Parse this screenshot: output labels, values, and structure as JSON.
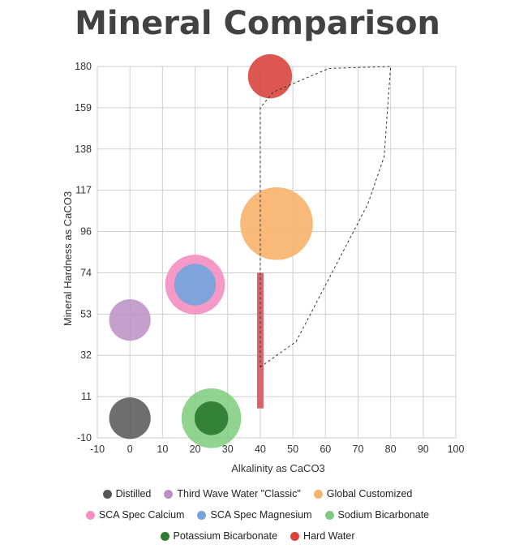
{
  "chart_data": {
    "type": "scatter",
    "title": "Mineral Comparison",
    "xlabel": "Alkalinity as CaCO3",
    "ylabel": "Mineral Hardness as CaCO3",
    "xlim": [
      -10,
      100
    ],
    "ylim": [
      -10,
      180
    ],
    "x_ticks": [
      "-10",
      "0",
      "10",
      "20",
      "30",
      "40",
      "50",
      "60",
      "70",
      "80",
      "90",
      "100"
    ],
    "y_ticks": [
      "-10",
      "11",
      "32",
      "53",
      "74",
      "96",
      "117",
      "138",
      "159",
      "180"
    ],
    "y_tick_values": [
      -10,
      11,
      32,
      53,
      74,
      96,
      117,
      138,
      159,
      180
    ],
    "grid": true,
    "legend_position": "bottom",
    "bubble_series": [
      {
        "name": "Sodium Bicarbonate",
        "color": "#7dcc7d",
        "opacity": 0.85,
        "x": 25,
        "y": 0,
        "r": 23
      },
      {
        "name": "Potassium Bicarbonate",
        "color": "#2e7d32",
        "opacity": 0.95,
        "x": 25,
        "y": 0,
        "r": 13
      },
      {
        "name": "Distilled",
        "color": "#555555",
        "opacity": 0.85,
        "x": 0,
        "y": 0,
        "r": 16
      },
      {
        "name": "Third Wave Water \"Classic\"",
        "color": "#bb8fc4",
        "opacity": 0.85,
        "x": 0,
        "y": 50,
        "r": 16
      },
      {
        "name": "SCA Spec Calcium",
        "color": "#f48fc1",
        "opacity": 0.9,
        "x": 20,
        "y": 68,
        "r": 23
      },
      {
        "name": "SCA Spec Magnesium",
        "color": "#77a4dc",
        "opacity": 0.95,
        "x": 20,
        "y": 68,
        "r": 16
      },
      {
        "name": "Global Customized",
        "color": "#f8b26a",
        "opacity": 0.9,
        "x": 45,
        "y": 100,
        "r": 28
      },
      {
        "name": "Hard Water",
        "color": "#d9453e",
        "opacity": 0.9,
        "x": 43,
        "y": 175,
        "r": 17
      }
    ],
    "bar": {
      "color": "#d9656a",
      "x": 40,
      "y_from": 5,
      "y_to": 74
    },
    "dashed_region": {
      "points": [
        [
          40,
          26
        ],
        [
          51,
          39
        ],
        [
          73,
          110
        ],
        [
          78,
          134
        ],
        [
          80,
          180
        ],
        [
          61,
          179
        ],
        [
          44,
          167
        ],
        [
          40,
          159
        ],
        [
          40,
          26
        ]
      ],
      "color": "#333333"
    },
    "legend": [
      [
        "Distilled",
        "Third Wave Water \"Classic\"",
        "Global Customized"
      ],
      [
        "SCA Spec Calcium",
        "SCA Spec Magnesium",
        "Sodium Bicarbonate"
      ],
      [
        "Potassium Bicarbonate",
        "Hard Water"
      ]
    ],
    "legend_colors": {
      "Distilled": "#555555",
      "Third Wave Water \"Classic\"": "#bb8fc4",
      "Global Customized": "#f8b26a",
      "SCA Spec Calcium": "#f48fc1",
      "SCA Spec Magnesium": "#77a4dc",
      "Sodium Bicarbonate": "#7dcc7d",
      "Potassium Bicarbonate": "#2e7d32",
      "Hard Water": "#d9453e"
    }
  }
}
